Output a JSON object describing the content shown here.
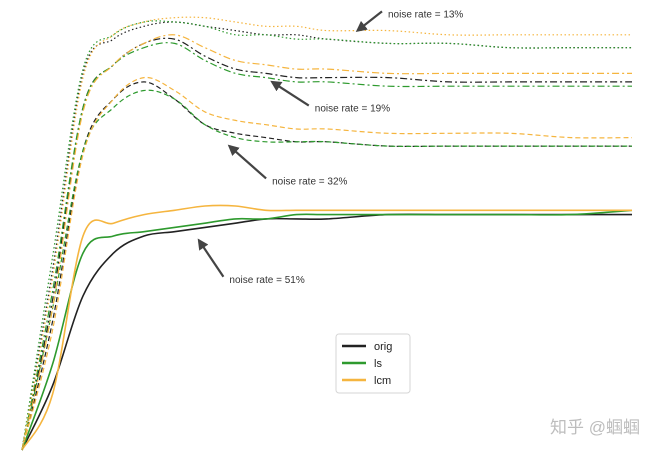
{
  "chart_data": {
    "type": "line",
    "title": "",
    "xlabel": "",
    "ylabel": "",
    "grid": false,
    "legend_position": "lower-center",
    "legend": [
      {
        "label": "orig",
        "color": "#222222"
      },
      {
        "label": "ls",
        "color": "#2e9a2e"
      },
      {
        "label": "lcm",
        "color": "#f5b53f"
      }
    ],
    "line_styles": {
      "solid": "noise rate = 51%",
      "dashed": "noise rate = 32%",
      "dashdot": "noise rate = 19%",
      "dotted": "noise rate = 13%"
    },
    "x_range": [
      0,
      100
    ],
    "y_range": [
      0,
      1
    ],
    "series": [
      {
        "method": "orig",
        "style": "solid",
        "color": "#222222",
        "x": [
          0,
          5,
          10,
          15,
          20,
          25,
          30,
          35,
          40,
          45,
          50,
          60,
          70,
          80,
          90,
          100
        ],
        "y": [
          0.0,
          0.15,
          0.36,
          0.46,
          0.5,
          0.51,
          0.52,
          0.53,
          0.54,
          0.54,
          0.54,
          0.55,
          0.55,
          0.55,
          0.55,
          0.55
        ]
      },
      {
        "method": "ls",
        "style": "solid",
        "color": "#2e9a2e",
        "x": [
          0,
          5,
          10,
          15,
          20,
          25,
          30,
          35,
          40,
          45,
          50,
          60,
          70,
          80,
          90,
          100
        ],
        "y": [
          0.0,
          0.2,
          0.46,
          0.5,
          0.51,
          0.52,
          0.53,
          0.54,
          0.54,
          0.55,
          0.55,
          0.55,
          0.55,
          0.55,
          0.55,
          0.56
        ]
      },
      {
        "method": "lcm",
        "style": "solid",
        "color": "#f5b53f",
        "x": [
          0,
          5,
          10,
          15,
          20,
          25,
          30,
          35,
          40,
          45,
          50,
          60,
          70,
          80,
          90,
          100
        ],
        "y": [
          0.0,
          0.13,
          0.5,
          0.53,
          0.55,
          0.56,
          0.57,
          0.57,
          0.56,
          0.56,
          0.56,
          0.56,
          0.56,
          0.56,
          0.56,
          0.56
        ]
      },
      {
        "method": "orig",
        "style": "dashed",
        "color": "#222222",
        "x": [
          0,
          5,
          10,
          15,
          20,
          25,
          30,
          35,
          40,
          45,
          50,
          60,
          70,
          80,
          90,
          100
        ],
        "y": [
          0.0,
          0.3,
          0.7,
          0.82,
          0.86,
          0.82,
          0.76,
          0.74,
          0.73,
          0.72,
          0.72,
          0.71,
          0.71,
          0.71,
          0.71,
          0.71
        ]
      },
      {
        "method": "ls",
        "style": "dashed",
        "color": "#2e9a2e",
        "x": [
          0,
          5,
          10,
          15,
          20,
          25,
          30,
          35,
          40,
          45,
          50,
          60,
          70,
          80,
          90,
          100
        ],
        "y": [
          0.0,
          0.33,
          0.7,
          0.8,
          0.84,
          0.82,
          0.76,
          0.73,
          0.72,
          0.72,
          0.72,
          0.71,
          0.71,
          0.71,
          0.71,
          0.71
        ]
      },
      {
        "method": "lcm",
        "style": "dashed",
        "color": "#f5b53f",
        "x": [
          0,
          5,
          10,
          15,
          20,
          25,
          30,
          35,
          40,
          45,
          50,
          60,
          70,
          80,
          90,
          100
        ],
        "y": [
          0.0,
          0.28,
          0.69,
          0.82,
          0.87,
          0.84,
          0.79,
          0.77,
          0.76,
          0.75,
          0.75,
          0.74,
          0.74,
          0.74,
          0.73,
          0.73
        ]
      },
      {
        "method": "orig",
        "style": "dashdot",
        "color": "#222222",
        "x": [
          0,
          5,
          10,
          15,
          20,
          25,
          30,
          35,
          40,
          45,
          50,
          60,
          70,
          80,
          90,
          100
        ],
        "y": [
          0.0,
          0.35,
          0.8,
          0.9,
          0.95,
          0.96,
          0.92,
          0.89,
          0.88,
          0.87,
          0.87,
          0.87,
          0.86,
          0.86,
          0.86,
          0.86
        ]
      },
      {
        "method": "ls",
        "style": "dashdot",
        "color": "#2e9a2e",
        "x": [
          0,
          5,
          10,
          15,
          20,
          25,
          30,
          35,
          40,
          45,
          50,
          60,
          70,
          80,
          90,
          100
        ],
        "y": [
          0.0,
          0.37,
          0.8,
          0.9,
          0.94,
          0.95,
          0.91,
          0.88,
          0.87,
          0.86,
          0.86,
          0.85,
          0.85,
          0.85,
          0.85,
          0.85
        ]
      },
      {
        "method": "lcm",
        "style": "dashdot",
        "color": "#f5b53f",
        "x": [
          0,
          5,
          10,
          15,
          20,
          25,
          30,
          35,
          40,
          45,
          50,
          60,
          70,
          80,
          90,
          100
        ],
        "y": [
          0.0,
          0.33,
          0.79,
          0.9,
          0.95,
          0.97,
          0.94,
          0.91,
          0.9,
          0.89,
          0.89,
          0.88,
          0.88,
          0.88,
          0.88,
          0.88
        ]
      },
      {
        "method": "orig",
        "style": "dotted",
        "color": "#222222",
        "x": [
          0,
          5,
          10,
          15,
          20,
          25,
          30,
          35,
          40,
          45,
          50,
          60,
          70,
          80,
          90,
          100
        ],
        "y": [
          0.0,
          0.42,
          0.88,
          0.96,
          0.99,
          1.0,
          0.99,
          0.98,
          0.97,
          0.97,
          0.96,
          0.95,
          0.95,
          0.94,
          0.94,
          0.94
        ]
      },
      {
        "method": "ls",
        "style": "dotted",
        "color": "#2e9a2e",
        "x": [
          0,
          5,
          10,
          15,
          20,
          25,
          30,
          35,
          40,
          45,
          50,
          60,
          70,
          80,
          90,
          100
        ],
        "y": [
          0.0,
          0.45,
          0.89,
          0.97,
          1.0,
          1.0,
          0.99,
          0.97,
          0.97,
          0.96,
          0.96,
          0.95,
          0.95,
          0.94,
          0.94,
          0.94
        ]
      },
      {
        "method": "lcm",
        "style": "dotted",
        "color": "#f5b53f",
        "x": [
          0,
          5,
          10,
          15,
          20,
          25,
          30,
          35,
          40,
          45,
          50,
          60,
          70,
          80,
          90,
          100
        ],
        "y": [
          0.0,
          0.4,
          0.87,
          0.97,
          1.0,
          1.01,
          1.01,
          1.0,
          0.99,
          0.99,
          0.98,
          0.98,
          0.97,
          0.97,
          0.97,
          0.97
        ]
      }
    ],
    "annotations": [
      {
        "text": "noise rate = 13%",
        "x": 60,
        "y": 1.02,
        "arrow_to": [
          55,
          0.98
        ]
      },
      {
        "text": "noise rate = 19%",
        "x": 48,
        "y": 0.8,
        "arrow_to": [
          41,
          0.86
        ]
      },
      {
        "text": "noise rate = 32%",
        "x": 41,
        "y": 0.63,
        "arrow_to": [
          34,
          0.71
        ]
      },
      {
        "text": "noise rate = 51%",
        "x": 34,
        "y": 0.4,
        "arrow_to": [
          29,
          0.49
        ]
      }
    ]
  },
  "watermark": {
    "text": "知乎 @蝈蝈"
  }
}
